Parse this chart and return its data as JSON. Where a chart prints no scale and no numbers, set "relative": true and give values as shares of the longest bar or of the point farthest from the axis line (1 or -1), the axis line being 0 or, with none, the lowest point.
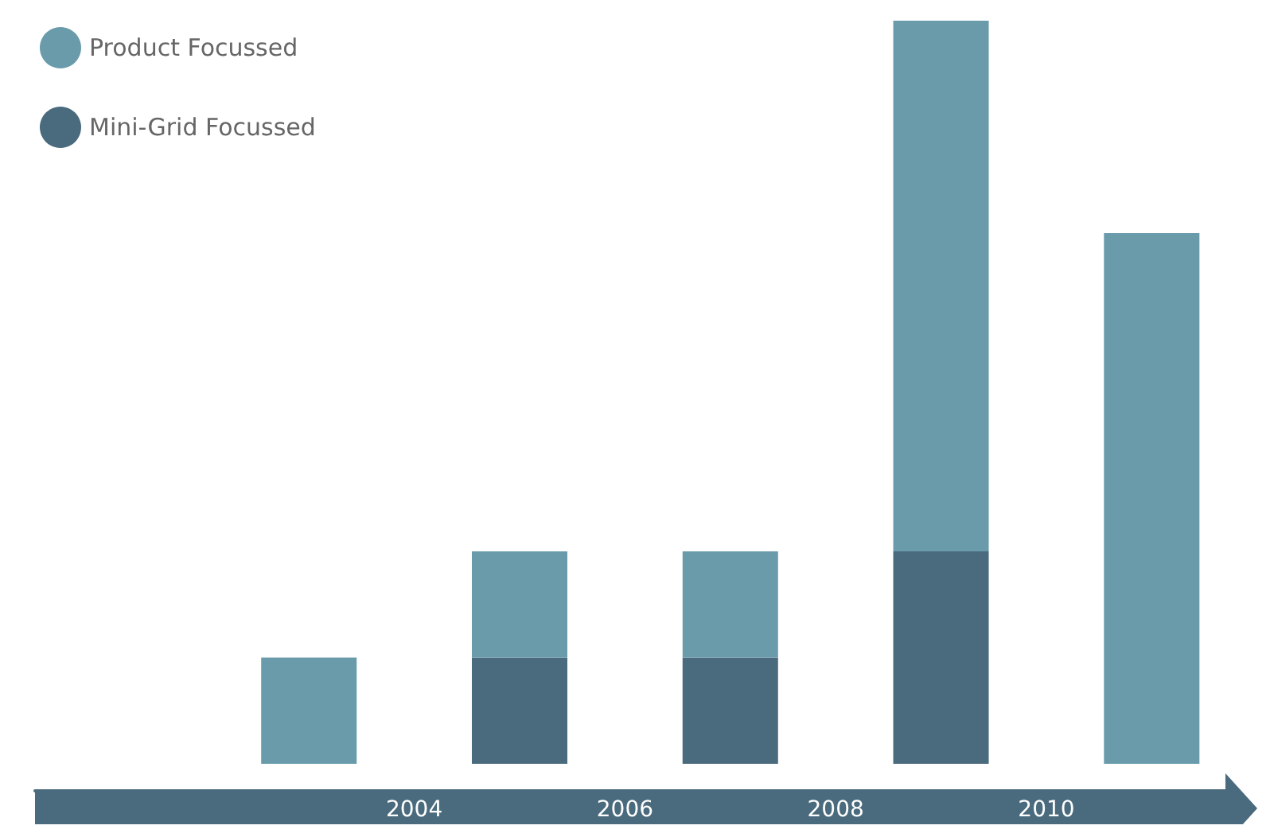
{
  "chart_data": {
    "type": "bar",
    "stacked": true,
    "relative": true,
    "x": [
      2003,
      2005,
      2007,
      2009,
      2011
    ],
    "xlim": [
      2000.4,
      2011.7
    ],
    "xticks": [
      2004,
      2006,
      2008,
      2010
    ],
    "legend": "top left",
    "grid": false,
    "series": [
      {
        "name": "Mini-Grid Focussed",
        "color": "#4a6a7d",
        "values": [
          0,
          0.143,
          0.143,
          0.286,
          0
        ]
      },
      {
        "name": "Product Focussed",
        "color": "#6a9bab",
        "values": [
          0.143,
          0.143,
          0.143,
          0.714,
          0.714
        ]
      }
    ]
  }
}
